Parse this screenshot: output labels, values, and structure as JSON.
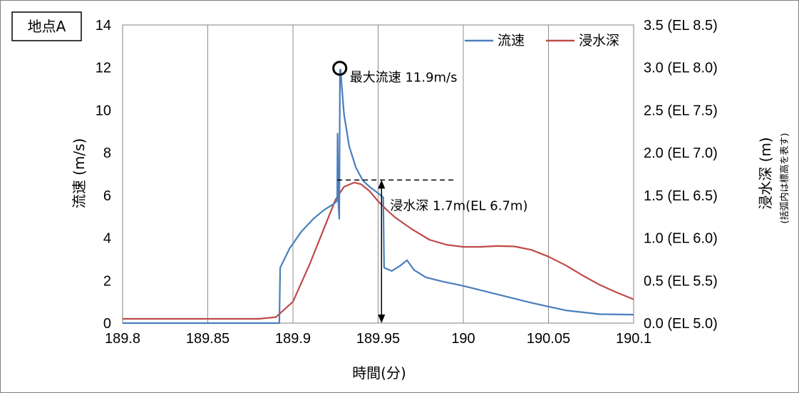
{
  "chart_data": {
    "type": "line",
    "location_label": "地点A",
    "xlabel": "時間(分)",
    "ylabel_left": "流速 (m/s)",
    "ylabel_right": "浸水深 (m)",
    "ylabel_right_note": "(括弧内は標高を表す)",
    "xlim": [
      189.8,
      190.1
    ],
    "ylim_left": [
      0,
      14
    ],
    "ylim_right": [
      0,
      3.5
    ],
    "x_ticks": [
      "189.8",
      "189.85",
      "189.9",
      "189.95",
      "190",
      "190.05",
      "190.1"
    ],
    "x_tick_values": [
      189.8,
      189.85,
      189.9,
      189.95,
      190.0,
      190.05,
      190.1
    ],
    "y_left_ticks": [
      "0",
      "2",
      "4",
      "6",
      "8",
      "10",
      "12",
      "14"
    ],
    "y_left_tick_values": [
      0,
      2,
      4,
      6,
      8,
      10,
      12,
      14
    ],
    "y_right_ticks": [
      "0.0 (EL 5.0)",
      "0.5 (EL 5.5)",
      "1.0 (EL 6.0)",
      "1.5 (EL 6.5)",
      "2.0 (EL 7.0)",
      "2.5 (EL 7.5)",
      "3.0 (EL 8.0)",
      "3.5 (EL 8.5)"
    ],
    "y_right_tick_values": [
      0,
      0.5,
      1.0,
      1.5,
      2.0,
      2.5,
      3.0,
      3.5
    ],
    "grid": "vertical",
    "legend_position": "top-right",
    "series": [
      {
        "name": "流速",
        "axis": "left",
        "color": "#4a7ebb",
        "x": [
          189.8,
          189.892,
          189.8925,
          189.898,
          189.905,
          189.912,
          189.918,
          189.924,
          189.926,
          189.9262,
          189.9267,
          189.9272,
          189.9276,
          189.928,
          189.9285,
          189.93,
          189.933,
          189.937,
          189.941,
          189.945,
          189.95,
          189.953,
          189.9535,
          189.958,
          189.963,
          189.967,
          189.971,
          189.978,
          189.988,
          190.0,
          190.02,
          190.04,
          190.06,
          190.08,
          190.1
        ],
        "y": [
          0,
          0,
          2.6,
          3.5,
          4.3,
          4.9,
          5.3,
          5.6,
          5.75,
          8.9,
          5.6,
          4.9,
          11.9,
          11.9,
          11.3,
          9.8,
          8.3,
          7.3,
          6.7,
          6.4,
          6.1,
          5.9,
          2.6,
          2.45,
          2.7,
          2.95,
          2.5,
          2.15,
          1.95,
          1.75,
          1.35,
          0.95,
          0.6,
          0.42,
          0.4
        ]
      },
      {
        "name": "浸水深",
        "axis": "right",
        "color": "#be4b48",
        "x": [
          189.8,
          189.88,
          189.89,
          189.9,
          189.91,
          189.92,
          189.925,
          189.93,
          189.936,
          189.94,
          189.945,
          189.95,
          189.955,
          189.96,
          189.97,
          189.98,
          189.99,
          190.0,
          190.01,
          190.02,
          190.03,
          190.04,
          190.05,
          190.06,
          190.07,
          190.08,
          190.09,
          190.1
        ],
        "y": [
          0.05,
          0.05,
          0.07,
          0.25,
          0.7,
          1.2,
          1.45,
          1.6,
          1.65,
          1.63,
          1.55,
          1.43,
          1.33,
          1.24,
          1.1,
          0.98,
          0.92,
          0.895,
          0.895,
          0.905,
          0.9,
          0.86,
          0.78,
          0.68,
          0.56,
          0.45,
          0.36,
          0.28
        ]
      }
    ],
    "annotations": {
      "max_velocity": {
        "text": "最大流速 11.9m/s",
        "x": 189.9275,
        "y": 11.9
      },
      "depth": {
        "text": "浸水深 1.7m(EL 6.7m)",
        "x": 189.952,
        "y_from": 0,
        "y_to": 1.68
      }
    }
  }
}
